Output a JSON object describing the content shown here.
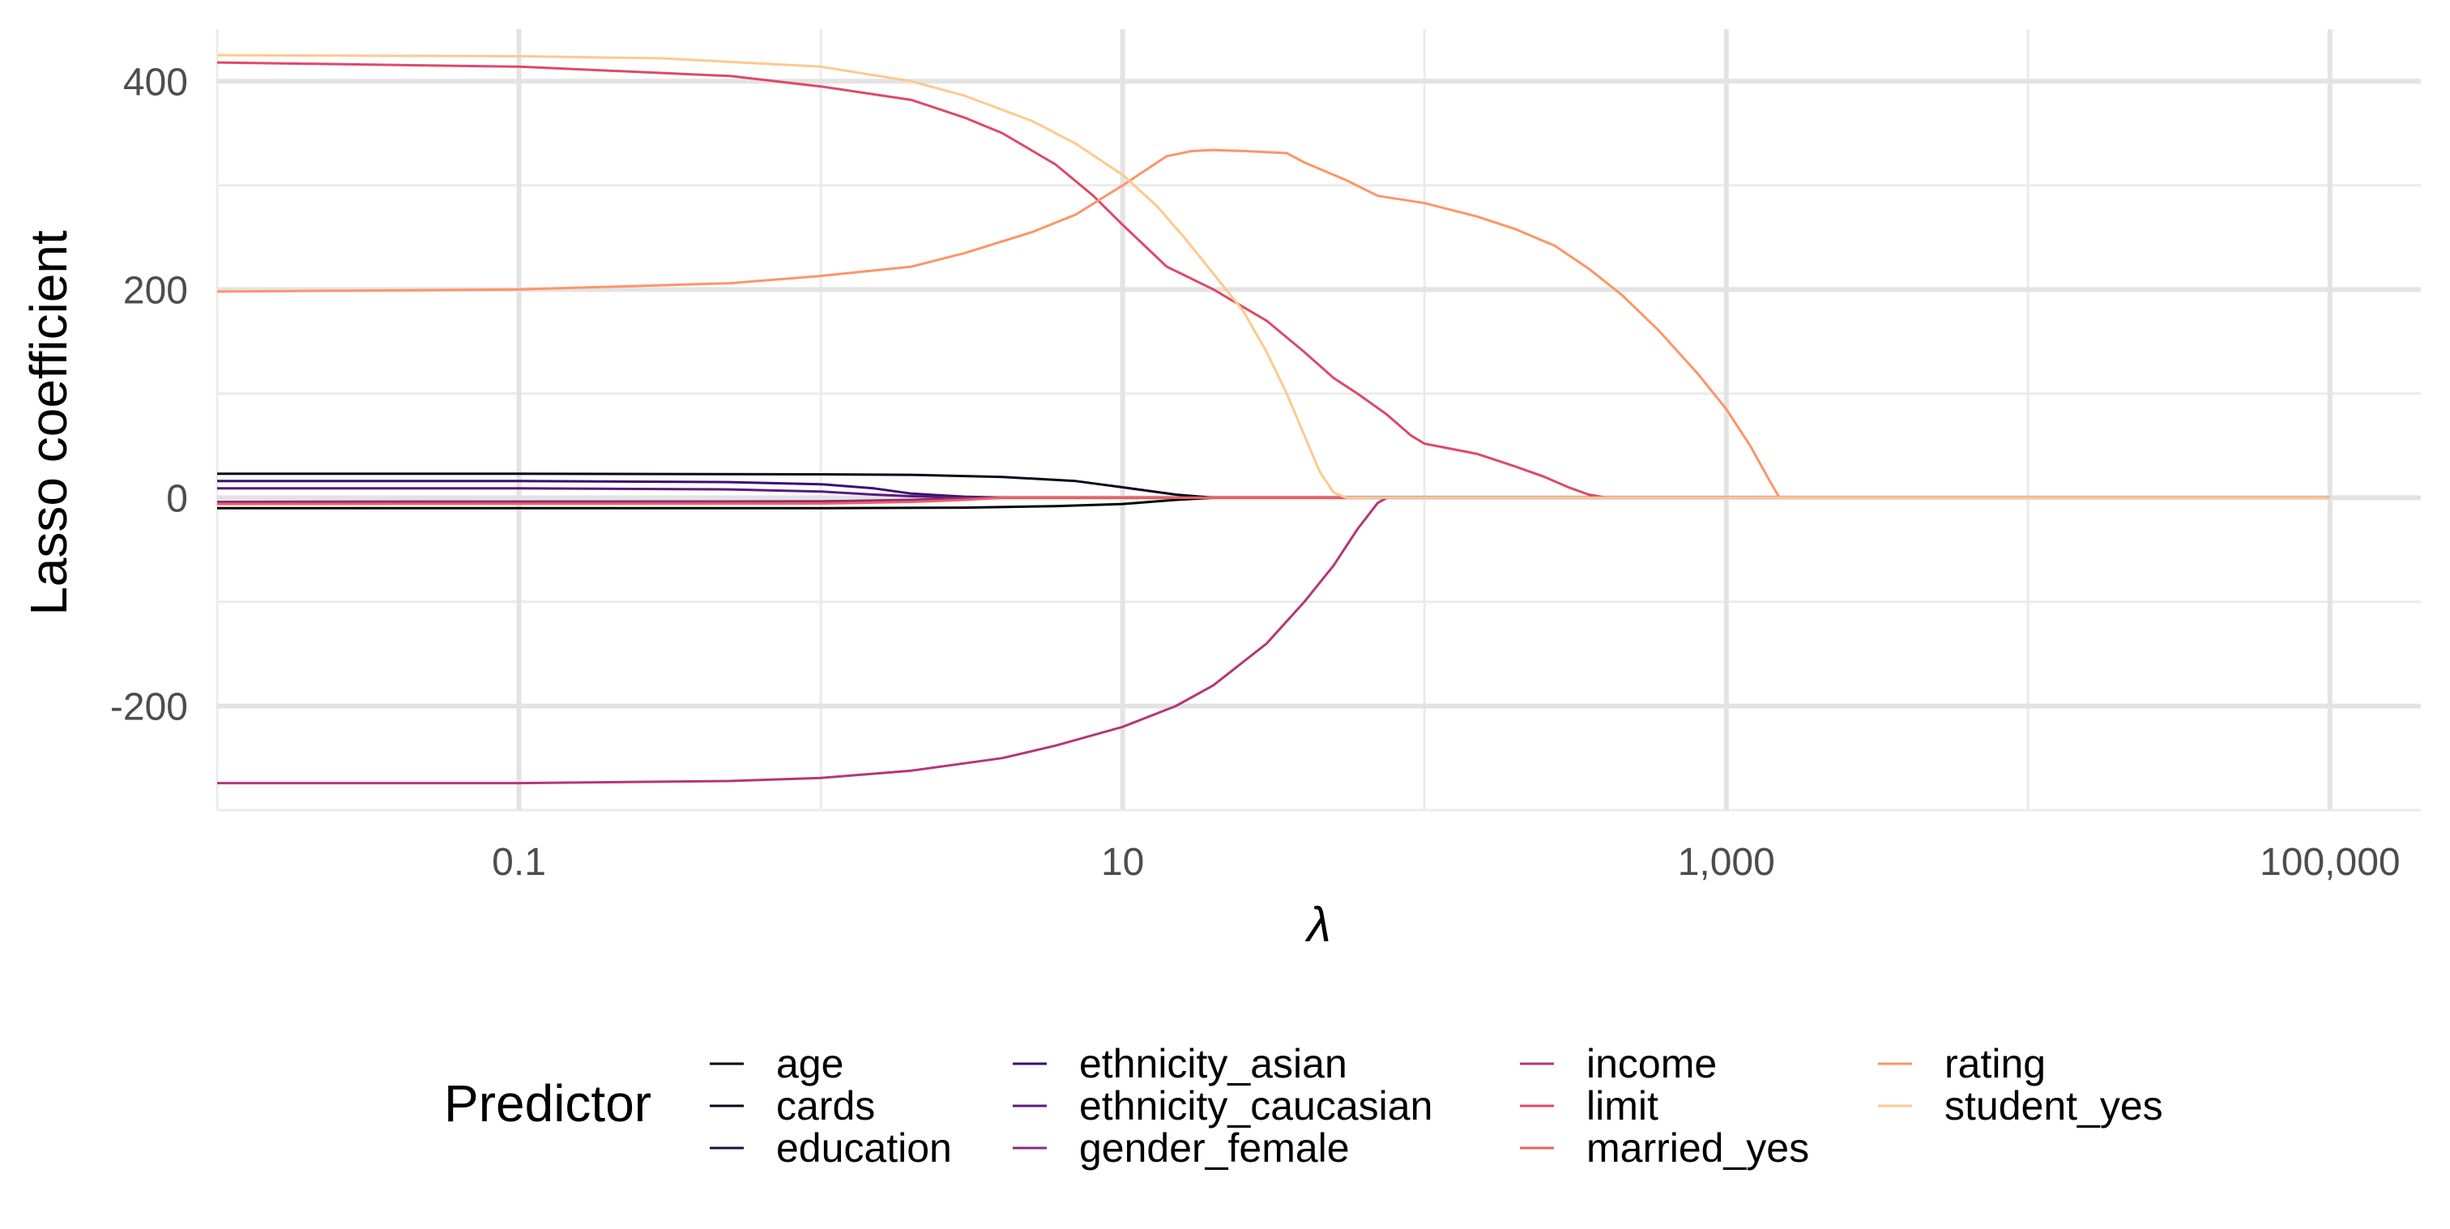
{
  "chart_data": {
    "type": "line",
    "title": "",
    "xlabel": "λ",
    "ylabel": "Lasso coefficient",
    "x_scale": "log10",
    "xlim": [
      0.01,
      200000
    ],
    "ylim": [
      -300,
      450
    ],
    "grid": true,
    "x_ticks": [
      {
        "value": 0.1,
        "label": "0.1"
      },
      {
        "value": 10,
        "label": "10"
      },
      {
        "value": 1000,
        "label": "1,000"
      },
      {
        "value": 100000,
        "label": "100,000"
      }
    ],
    "y_ticks": [
      {
        "value": -200,
        "label": "-200"
      },
      {
        "value": 0,
        "label": "0"
      },
      {
        "value": 200,
        "label": "200"
      },
      {
        "value": 400,
        "label": "400"
      }
    ],
    "x_minor": [
      0.01,
      1,
      100,
      10000
    ],
    "y_minor": [
      -300,
      -100,
      100,
      300
    ],
    "legend": {
      "title": "Predictor",
      "position": "bottom",
      "ncol": 4
    },
    "series": [
      {
        "name": "age",
        "color": "#000004",
        "points": [
          [
            0.01,
            -10
          ],
          [
            0.1,
            -10
          ],
          [
            1,
            -10
          ],
          [
            3,
            -9.5
          ],
          [
            6,
            -8
          ],
          [
            10,
            -6
          ],
          [
            15,
            -2
          ],
          [
            20,
            0
          ],
          [
            100000,
            0
          ]
        ]
      },
      {
        "name": "cards",
        "color": "#07061c",
        "points": [
          [
            0.01,
            23
          ],
          [
            0.1,
            23
          ],
          [
            1,
            22.5
          ],
          [
            2,
            22
          ],
          [
            4,
            20
          ],
          [
            7,
            16
          ],
          [
            10,
            10
          ],
          [
            15,
            3
          ],
          [
            20,
            0
          ],
          [
            100000,
            0
          ]
        ]
      },
      {
        "name": "education",
        "color": "#1c1044",
        "points": [
          [
            0.01,
            -4
          ],
          [
            1,
            -3.5
          ],
          [
            2,
            -2.5
          ],
          [
            3,
            -1
          ],
          [
            4,
            0
          ],
          [
            100000,
            0
          ]
        ]
      },
      {
        "name": "ethnicity_asian",
        "color": "#3b0f70",
        "points": [
          [
            0.01,
            16
          ],
          [
            0.1,
            16
          ],
          [
            0.5,
            15
          ],
          [
            1,
            13
          ],
          [
            1.5,
            9
          ],
          [
            2,
            4
          ],
          [
            3,
            1
          ],
          [
            4,
            0
          ],
          [
            100000,
            0
          ]
        ]
      },
      {
        "name": "ethnicity_caucasian",
        "color": "#5b1a7a",
        "points": [
          [
            0.01,
            9
          ],
          [
            0.1,
            9
          ],
          [
            0.5,
            8
          ],
          [
            1,
            6
          ],
          [
            1.5,
            3
          ],
          [
            2,
            1.5
          ],
          [
            3,
            0
          ],
          [
            100000,
            0
          ]
        ]
      },
      {
        "name": "gender_female",
        "color": "#8c2981",
        "points": [
          [
            0.01,
            -4
          ],
          [
            1,
            -3.5
          ],
          [
            2,
            -2
          ],
          [
            3,
            -0.5
          ],
          [
            4,
            0
          ],
          [
            100000,
            0
          ]
        ]
      },
      {
        "name": "income",
        "color": "#b5367a",
        "points": [
          [
            0.01,
            -274
          ],
          [
            0.1,
            -274
          ],
          [
            0.5,
            -272
          ],
          [
            1,
            -269
          ],
          [
            2,
            -262
          ],
          [
            4,
            -250
          ],
          [
            6,
            -238
          ],
          [
            10,
            -220
          ],
          [
            15,
            -200
          ],
          [
            20,
            -180
          ],
          [
            30,
            -140
          ],
          [
            40,
            -100
          ],
          [
            50,
            -65
          ],
          [
            60,
            -30
          ],
          [
            70,
            -5
          ],
          [
            75,
            0
          ],
          [
            100000,
            0
          ]
        ]
      },
      {
        "name": "limit",
        "color": "#de4968",
        "points": [
          [
            0.01,
            418
          ],
          [
            0.1,
            414
          ],
          [
            0.5,
            405
          ],
          [
            1,
            395
          ],
          [
            2,
            382
          ],
          [
            3,
            365
          ],
          [
            4,
            350
          ],
          [
            6,
            320
          ],
          [
            8,
            290
          ],
          [
            10,
            262
          ],
          [
            14,
            222
          ],
          [
            20,
            200
          ],
          [
            30,
            170
          ],
          [
            40,
            140
          ],
          [
            50,
            115
          ],
          [
            60,
            100
          ],
          [
            75,
            80
          ],
          [
            90,
            60
          ],
          [
            100,
            52
          ],
          [
            150,
            42
          ],
          [
            200,
            30
          ],
          [
            250,
            20
          ],
          [
            300,
            10
          ],
          [
            350,
            3
          ],
          [
            400,
            0
          ],
          [
            100000,
            0
          ]
        ]
      },
      {
        "name": "married_yes",
        "color": "#f1605d",
        "points": [
          [
            0.01,
            -6
          ],
          [
            1,
            -5.5
          ],
          [
            2,
            -4
          ],
          [
            3,
            -2
          ],
          [
            4,
            0
          ],
          [
            100000,
            0
          ]
        ]
      },
      {
        "name": "rating",
        "color": "#fd9567",
        "points": [
          [
            0.01,
            198
          ],
          [
            0.1,
            200
          ],
          [
            0.5,
            206
          ],
          [
            1,
            213
          ],
          [
            2,
            222
          ],
          [
            3,
            235
          ],
          [
            5,
            255
          ],
          [
            7,
            272
          ],
          [
            10,
            300
          ],
          [
            14,
            328
          ],
          [
            17,
            333
          ],
          [
            20,
            334
          ],
          [
            25,
            333
          ],
          [
            30,
            332
          ],
          [
            35,
            331
          ],
          [
            40,
            322
          ],
          [
            55,
            305
          ],
          [
            70,
            290
          ],
          [
            100,
            283
          ],
          [
            150,
            270
          ],
          [
            200,
            258
          ],
          [
            270,
            242
          ],
          [
            350,
            220
          ],
          [
            450,
            195
          ],
          [
            600,
            160
          ],
          [
            800,
            120
          ],
          [
            1000,
            85
          ],
          [
            1200,
            50
          ],
          [
            1400,
            15
          ],
          [
            1500,
            0
          ],
          [
            100000,
            0
          ]
        ]
      },
      {
        "name": "student_yes",
        "color": "#fec98d",
        "points": [
          [
            0.01,
            425
          ],
          [
            0.1,
            424
          ],
          [
            0.3,
            422
          ],
          [
            1,
            414
          ],
          [
            2,
            400
          ],
          [
            3,
            386
          ],
          [
            5,
            362
          ],
          [
            7,
            340
          ],
          [
            10,
            310
          ],
          [
            13,
            280
          ],
          [
            16,
            250
          ],
          [
            20,
            215
          ],
          [
            25,
            180
          ],
          [
            30,
            140
          ],
          [
            35,
            100
          ],
          [
            40,
            60
          ],
          [
            45,
            25
          ],
          [
            50,
            5
          ],
          [
            55,
            0
          ],
          [
            100000,
            0
          ]
        ]
      }
    ]
  }
}
